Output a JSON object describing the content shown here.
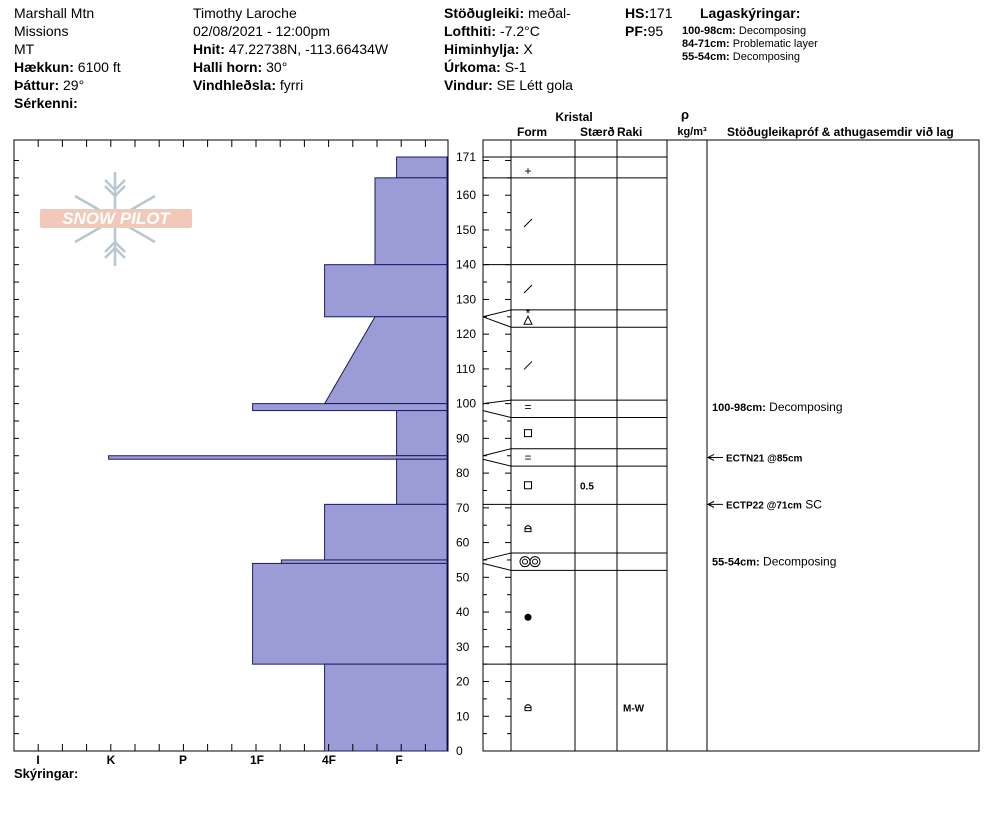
{
  "header": {
    "location": "Marshall Mtn",
    "region": "Missions",
    "state": "MT",
    "elevation_label": "Hækkun:",
    "elevation_value": "6100 ft",
    "aspect_label": "Þáttur:",
    "aspect_value": "29°",
    "features_label": "Sérkenni:",
    "observer": "Timothy  Laroche",
    "datetime": "02/08/2021 - 12:00pm",
    "coords_label": "Hnit:",
    "coords_value": "47.22738N, -113.66434W",
    "slope_label": "Halli horn:",
    "slope_value": "30°",
    "wind_loading_label": "Vindhleðsla:",
    "wind_loading_value": "fyrri",
    "stability_label": "Stöðugleiki:",
    "stability_value": "meðal-",
    "air_temp_label": "Lofthiti:",
    "air_temp_value": "-7.2°C",
    "sky_label": "Himinhylja:",
    "sky_value": "X",
    "precip_label": "Úrkoma:",
    "precip_value": "S-1",
    "wind_label": "Vindur:",
    "wind_value": "SE Létt gola",
    "hs_label": "HS:",
    "hs_value": "171",
    "pf_label": "PF:",
    "pf_value": "95",
    "legend_title": "Lagaskýringar:",
    "legend": [
      {
        "range": "100-98cm:",
        "text": "Decomposing"
      },
      {
        "range": "84-71cm:",
        "text": "Problematic layer"
      },
      {
        "range": "55-54cm:",
        "text": "Decomposing"
      }
    ]
  },
  "columns": {
    "crystal": "Kristal",
    "form": "Form",
    "size": "Stærð",
    "moisture": "Raki",
    "rho": "ρ",
    "density_unit": "kg/m³",
    "tests": "Stöðugleikapróf & athugasemdir við lag"
  },
  "logo_text": "SNOW PILOT",
  "footer_label": "Skýringar:",
  "colors": {
    "fill": "#9b9bd6",
    "stroke": "#1a1a66",
    "logo": "#f2c9b8",
    "logo_flake": "#b8c6cf"
  },
  "chart_data": {
    "type": "snow-profile",
    "hardness_scale": [
      "I",
      "K",
      "P",
      "1F",
      "4F",
      "F"
    ],
    "depth_ticks": [
      0,
      10,
      20,
      30,
      40,
      50,
      60,
      70,
      80,
      90,
      100,
      110,
      120,
      130,
      140,
      150,
      160,
      171
    ],
    "ylim": [
      0,
      171
    ],
    "hardness_profile": [
      {
        "top": 171,
        "bottom": 165,
        "hardness": 0.7
      },
      {
        "top": 165,
        "bottom": 140,
        "hardness": 1.0
      },
      {
        "top": 140,
        "bottom": 125,
        "hardness": 1.7
      },
      {
        "top": 125,
        "bottom": 100,
        "hardness_top": 1.0,
        "hardness_bottom": 1.7
      },
      {
        "top": 100,
        "bottom": 98,
        "hardness": 2.7
      },
      {
        "top": 98,
        "bottom": 85,
        "hardness": 0.7
      },
      {
        "top": 85,
        "bottom": 84,
        "hardness": 4.7
      },
      {
        "top": 84,
        "bottom": 71,
        "hardness": 0.7
      },
      {
        "top": 71,
        "bottom": 55,
        "hardness": 1.7
      },
      {
        "top": 55,
        "bottom": 54,
        "hardness": 2.3
      },
      {
        "top": 54,
        "bottom": 25,
        "hardness": 2.7
      },
      {
        "top": 25,
        "bottom": 0,
        "hardness": 1.7
      }
    ],
    "layer_boundaries": [
      171,
      165,
      140,
      127,
      122,
      101,
      96,
      87,
      82,
      71,
      57,
      52,
      25,
      0
    ],
    "grain_forms": [
      {
        "depth": 167,
        "symbol": "+"
      },
      {
        "depth": 152,
        "symbol": "/"
      },
      {
        "depth": 133,
        "symbol": "/"
      },
      {
        "depth": 126,
        "symbol": "*"
      },
      {
        "depth": 124,
        "symbol": "Δ"
      },
      {
        "depth": 111,
        "symbol": "/"
      },
      {
        "depth": 99,
        "symbol": "="
      },
      {
        "depth": 91.5,
        "symbol": "□"
      },
      {
        "depth": 84.5,
        "symbol": "="
      },
      {
        "depth": 76.5,
        "symbol": "□"
      },
      {
        "depth": 64,
        "symbol": "⌂"
      },
      {
        "depth": 54.5,
        "symbol": "◎◎"
      },
      {
        "depth": 38.5,
        "symbol": "●"
      },
      {
        "depth": 12.5,
        "symbol": "⌂"
      }
    ],
    "grain_sizes": [
      {
        "depth": 76.5,
        "value": "0.5"
      }
    ],
    "moisture": [
      {
        "depth": 12.5,
        "value": "M-W"
      }
    ],
    "comments": [
      {
        "depth": 99,
        "arrow": false,
        "label": "100-98cm:",
        "text": "Decomposing"
      },
      {
        "depth": 84.5,
        "arrow": true,
        "label": "ECTN21 @85cm",
        "text": ""
      },
      {
        "depth": 71,
        "arrow": true,
        "label": "ECTP22 @71cm",
        "text": "SC"
      },
      {
        "depth": 54.5,
        "arrow": false,
        "label": "55-54cm:",
        "text": "Decomposing"
      }
    ]
  }
}
